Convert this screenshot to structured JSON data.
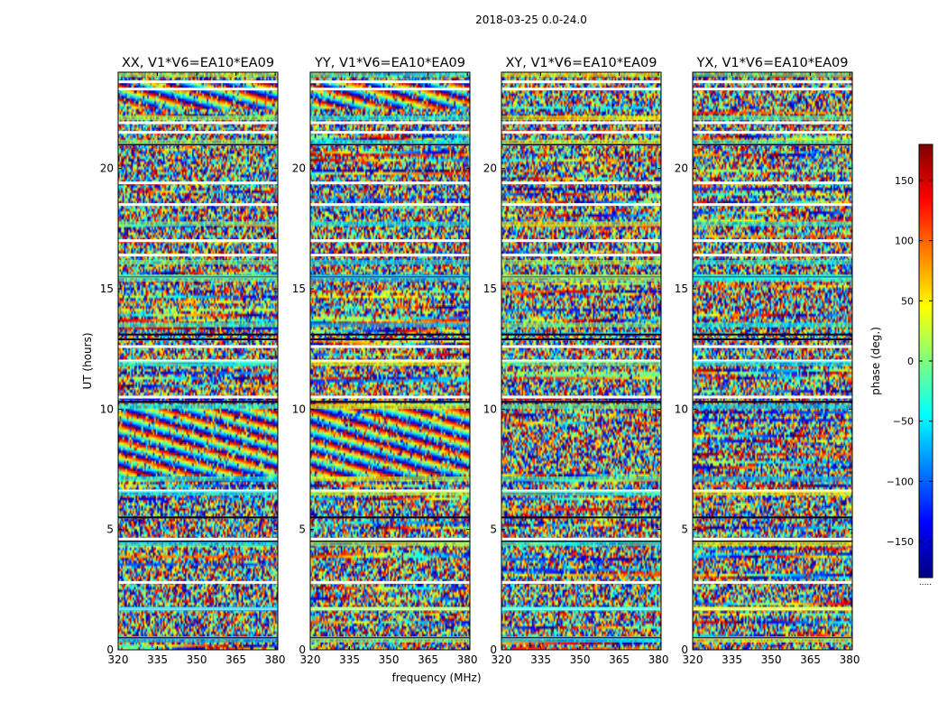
{
  "chart_data": {
    "type": "heatmap",
    "suptitle": "2018-03-25 0.0-24.0",
    "xlabel": "frequency (MHz)",
    "ylabel": "UT (hours)",
    "x_range": [
      320,
      381
    ],
    "y_range": [
      0,
      24
    ],
    "x_ticks": [
      320,
      335,
      350,
      365,
      380
    ],
    "y_ticks": [
      0,
      5,
      10,
      15,
      20
    ],
    "colorbar": {
      "label": "phase (deg.)",
      "range": [
        -180,
        180
      ],
      "ticks": [
        -150,
        -100,
        -50,
        0,
        50,
        100,
        150
      ],
      "tick_labels": [
        "−150",
        "−100",
        "−50",
        "0",
        "50",
        "100",
        "150"
      ],
      "colormap": [
        "#00007f",
        "#0000ff",
        "#007fff",
        "#00ffff",
        "#7fff7f",
        "#ffff00",
        "#ff7f00",
        "#ff0000",
        "#7f0000"
      ],
      "under_note": "....."
    },
    "panels": [
      {
        "title": "XX, V1*V6=EA10*EA09",
        "pol": "XX"
      },
      {
        "title": "YY, V1*V6=EA10*EA09",
        "pol": "YY"
      },
      {
        "title": "XY, V1*V6=EA10*EA09",
        "pol": "XY"
      },
      {
        "title": "YX, V1*V6=EA10*EA09",
        "pol": "YX"
      }
    ],
    "flagged_rows_hours": [
      0.5,
      1.7,
      2.8,
      4.6,
      6.6,
      10.5,
      12.0,
      12.6,
      15.5,
      16.4,
      17.0,
      18.5,
      19.4,
      21.5,
      21.9,
      23.3,
      23.6
    ],
    "bright_bands_hours": [
      [
        0.3,
        0.5
      ],
      [
        1.6,
        1.8
      ],
      [
        4.3,
        4.5
      ],
      [
        6.4,
        6.6
      ],
      [
        7.0,
        7.2
      ],
      [
        10.0,
        10.2
      ],
      [
        11.8,
        12.0
      ],
      [
        13.4,
        13.6
      ],
      [
        15.3,
        15.6
      ],
      [
        16.0,
        16.2
      ],
      [
        17.6,
        17.8
      ],
      [
        21.0,
        21.2
      ],
      [
        22.0,
        22.2
      ],
      [
        23.8,
        24.0
      ]
    ]
  }
}
